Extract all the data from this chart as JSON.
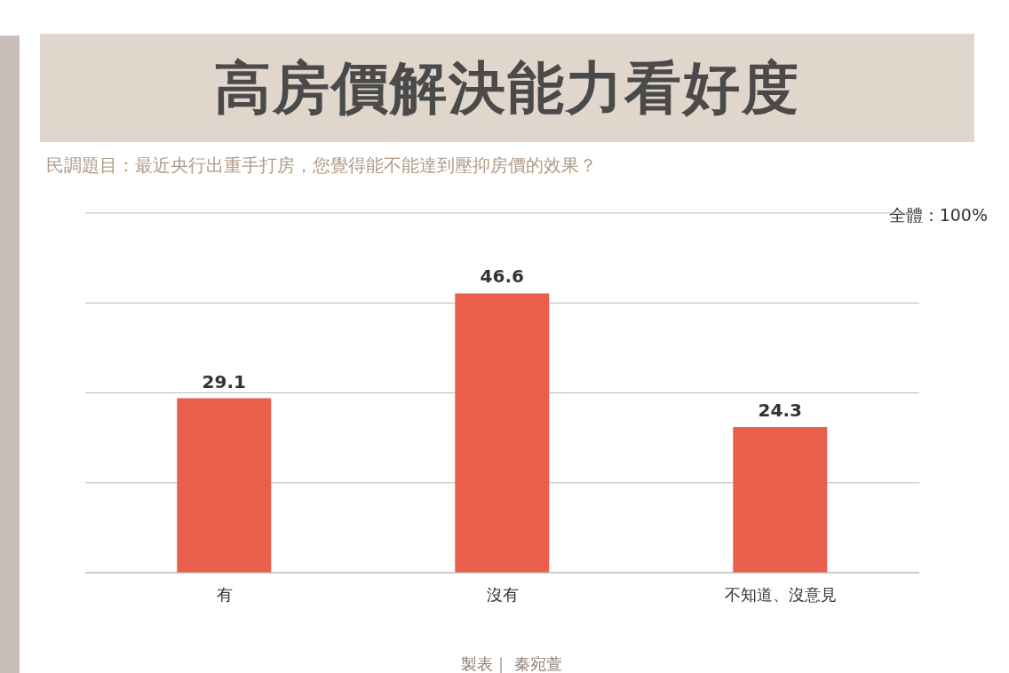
{
  "chart_data": {
    "type": "bar",
    "title": "高房價解決能力看好度",
    "subtitle": "民調題目：最近央行出重手打房，您覺得能不能達到壓抑房價的效果？",
    "categories": [
      "有",
      "沒有",
      "不知道、沒意見"
    ],
    "values": [
      29.1,
      46.6,
      24.3
    ],
    "color": "#e95f4b",
    "data_labels": true,
    "grid": "y",
    "tick_labels": "x",
    "legend": false,
    "annotations": [
      "全體：100%",
      "製表｜ 秦宛萱"
    ]
  }
}
